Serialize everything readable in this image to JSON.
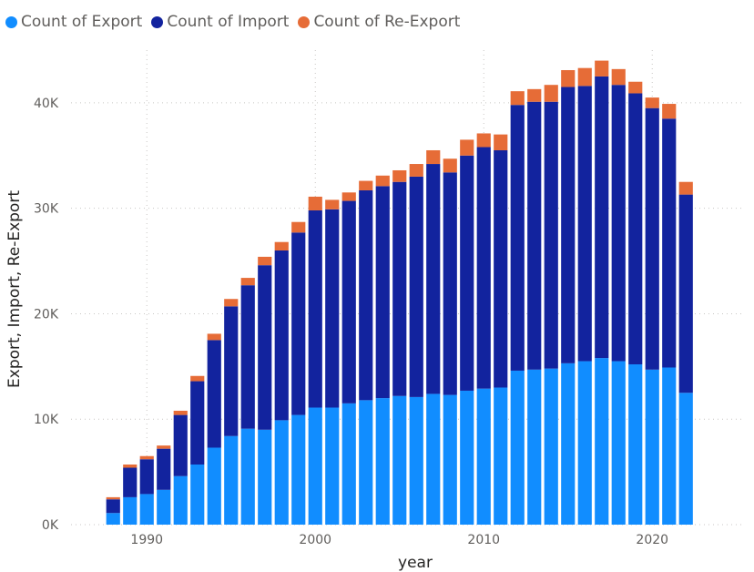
{
  "chart_data": {
    "type": "bar",
    "stacked": true,
    "xlabel": "year",
    "ylabel": "Export, Import, Re-Export",
    "x": [
      1988,
      1989,
      1990,
      1991,
      1992,
      1993,
      1994,
      1995,
      1996,
      1997,
      1998,
      1999,
      2000,
      2001,
      2002,
      2003,
      2004,
      2005,
      2006,
      2007,
      2008,
      2009,
      2010,
      2011,
      2012,
      2013,
      2014,
      2015,
      2016,
      2017,
      2018,
      2019,
      2020,
      2021,
      2022
    ],
    "x_ticks": [
      1990,
      2000,
      2010,
      2020
    ],
    "x_tick_labels": [
      "1990",
      "2000",
      "2010",
      "2020"
    ],
    "xlim": [
      1985.5,
      2025.5
    ],
    "y_ticks": [
      0,
      10000,
      20000,
      30000,
      40000
    ],
    "y_tick_labels": [
      "0K",
      "10K",
      "20K",
      "30K",
      "40K"
    ],
    "ylim": [
      0,
      45000
    ],
    "grid": true,
    "legend_position": "top-left",
    "series": [
      {
        "name": "Count of Export",
        "color": "#118DFF",
        "values": [
          1100,
          2600,
          2900,
          3300,
          4600,
          5700,
          7300,
          8400,
          9100,
          9000,
          9900,
          10400,
          11100,
          11100,
          11500,
          11800,
          12000,
          12200,
          12100,
          12400,
          12300,
          12700,
          12900,
          13000,
          14600,
          14700,
          14800,
          15300,
          15500,
          15800,
          15500,
          15200,
          14700,
          14900,
          12500
        ]
      },
      {
        "name": "Count of Import",
        "color": "#12239E",
        "values": [
          1300,
          2800,
          3300,
          3900,
          5800,
          7900,
          10200,
          12300,
          13600,
          15600,
          16100,
          17300,
          18700,
          18800,
          19200,
          19900,
          20100,
          20300,
          20900,
          21800,
          21100,
          22300,
          22900,
          22500,
          25200,
          25400,
          25300,
          26200,
          26100,
          26700,
          26200,
          25700,
          24800,
          23600,
          18800
        ]
      },
      {
        "name": "Count of Re-Export",
        "color": "#E66C37",
        "values": [
          200,
          300,
          300,
          300,
          400,
          500,
          600,
          700,
          700,
          800,
          800,
          1000,
          1300,
          900,
          800,
          900,
          1000,
          1100,
          1200,
          1300,
          1300,
          1500,
          1300,
          1500,
          1300,
          1200,
          1600,
          1600,
          1700,
          1500,
          1500,
          1100,
          1000,
          1400,
          1200
        ]
      }
    ]
  }
}
